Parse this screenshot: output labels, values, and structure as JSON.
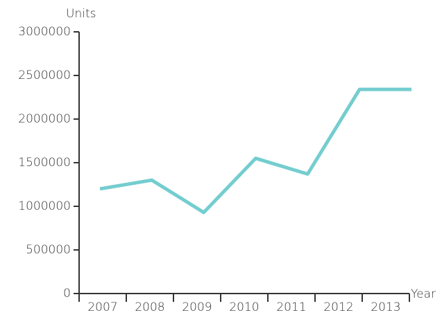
{
  "chart_data": {
    "type": "line",
    "y_axis_label": "Units",
    "x_axis_label": "Year",
    "categories": [
      "2007",
      "2008",
      "2009",
      "2010",
      "2011",
      "2012",
      "2013"
    ],
    "series": [
      {
        "name": "Units",
        "color": "#74cdcf",
        "values": [
          1200000,
          1300000,
          930000,
          1550000,
          1370000,
          2340000,
          2340000
        ]
      }
    ],
    "ylim": [
      0,
      3000000
    ],
    "yticks": [
      0,
      500000,
      1000000,
      1500000,
      2000000,
      2500000,
      3000000
    ],
    "grid": false
  }
}
